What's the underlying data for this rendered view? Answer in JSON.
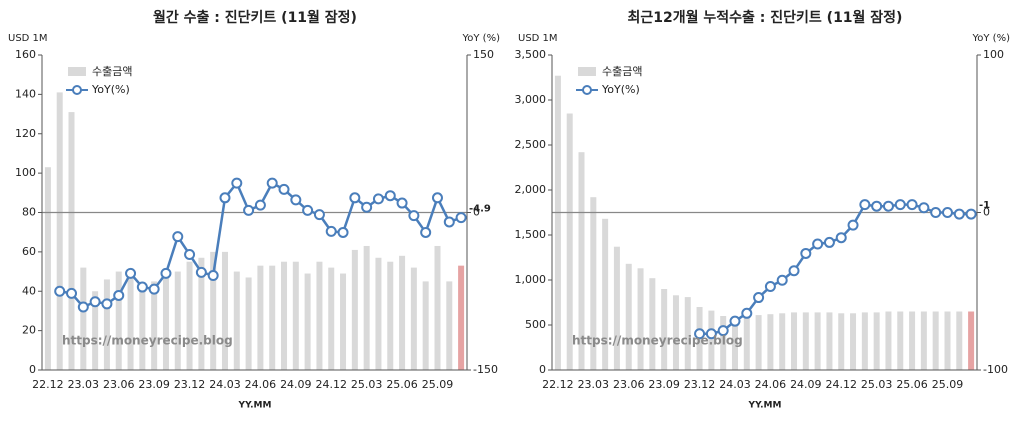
{
  "chart_data": [
    {
      "type": "combo",
      "title": "월간 수출 : 진단키트 (11월 잠정)",
      "y_label": "USD 1M",
      "y2_label": "YoY (%)",
      "x_label": "YY.MM",
      "watermark": "https://moneyrecipe.blog",
      "categories": [
        "22.12",
        null,
        null,
        "23.03",
        null,
        null,
        "23.06",
        null,
        null,
        "23.09",
        null,
        null,
        "23.12",
        null,
        null,
        "24.03",
        null,
        null,
        "24.06",
        null,
        null,
        "24.09",
        null,
        null,
        "24.12",
        null,
        null,
        "25.03",
        null,
        null,
        "25.06",
        null,
        null,
        "25.09",
        null,
        null
      ],
      "series": [
        {
          "name": "수출금액",
          "color": "#d9d9d9",
          "highlight_last_color": "#e6a3a3",
          "values": [
            103,
            141,
            131,
            52,
            40,
            46,
            50,
            50,
            44,
            45,
            49,
            50,
            55,
            57,
            60,
            60,
            50,
            47,
            53,
            53,
            55,
            55,
            49,
            55,
            52,
            49,
            61,
            63,
            57,
            55,
            58,
            52,
            45,
            63,
            45,
            53
          ]
        },
        {
          "name": "YoY(%)",
          "color": "#4a7ebb",
          "axis": "y2",
          "values": [
            null,
            -75,
            -77,
            -90,
            -85,
            -87,
            -79,
            -58,
            -71,
            -73,
            -58,
            -23,
            -40,
            -57,
            -60,
            14,
            28,
            2,
            7,
            28,
            22,
            12,
            2,
            -2,
            -18,
            -19,
            14,
            5,
            13,
            16,
            9,
            -3,
            -19,
            14,
            -9,
            -4.9
          ]
        }
      ],
      "ylim": [
        0,
        160
      ],
      "yticks": [
        0,
        20,
        40,
        60,
        80,
        100,
        120,
        140,
        160
      ],
      "y2lim": [
        -150,
        150
      ],
      "y2ticks": [
        -150,
        0,
        150
      ]
    },
    {
      "type": "combo",
      "title": "최근12개월 누적수출 : 진단키트 (11월 잠정)",
      "y_label": "USD 1M",
      "y2_label": "YoY (%)",
      "x_label": "YY.MM",
      "watermark": "https://moneyrecipe.blog",
      "categories": [
        "22.12",
        null,
        null,
        "23.03",
        null,
        null,
        "23.06",
        null,
        null,
        "23.09",
        null,
        null,
        "23.12",
        null,
        null,
        "24.03",
        null,
        null,
        "24.06",
        null,
        null,
        "24.09",
        null,
        null,
        "24.12",
        null,
        null,
        "25.03",
        null,
        null,
        "25.06",
        null,
        null,
        "25.09",
        null,
        null
      ],
      "series": [
        {
          "name": "수출금액",
          "color": "#d9d9d9",
          "highlight_last_color": "#e6a3a3",
          "values": [
            3270,
            2850,
            2420,
            1920,
            1680,
            1370,
            1180,
            1130,
            1020,
            900,
            830,
            810,
            700,
            660,
            600,
            580,
            600,
            610,
            620,
            630,
            640,
            640,
            640,
            640,
            630,
            630,
            640,
            640,
            650,
            650,
            650,
            650,
            650,
            650,
            650,
            650
          ]
        },
        {
          "name": "YoY(%)",
          "color": "#4a7ebb",
          "axis": "y2",
          "values": [
            null,
            null,
            null,
            null,
            null,
            null,
            null,
            null,
            null,
            null,
            null,
            null,
            -77,
            -77,
            -75,
            -69,
            -64,
            -54,
            -47,
            -43,
            -37,
            -26,
            -20,
            -19,
            -16,
            -8,
            5,
            4,
            4,
            5,
            5,
            3,
            0,
            0,
            -1,
            -1
          ]
        }
      ],
      "ylim": [
        0,
        3500
      ],
      "yticks": [
        0,
        {
          "value": 500,
          "label": "500"
        },
        {
          "value": 1000,
          "label": "1,000"
        },
        {
          "value": 1500,
          "label": "1,500"
        },
        {
          "value": 2000,
          "label": "2,000"
        },
        {
          "value": 2500,
          "label": "2,500"
        },
        {
          "value": 3000,
          "label": "3,000"
        },
        {
          "value": 3500,
          "label": "3,500"
        }
      ],
      "y2lim": [
        -100,
        100
      ],
      "y2ticks": [
        -100,
        0,
        100
      ]
    }
  ]
}
